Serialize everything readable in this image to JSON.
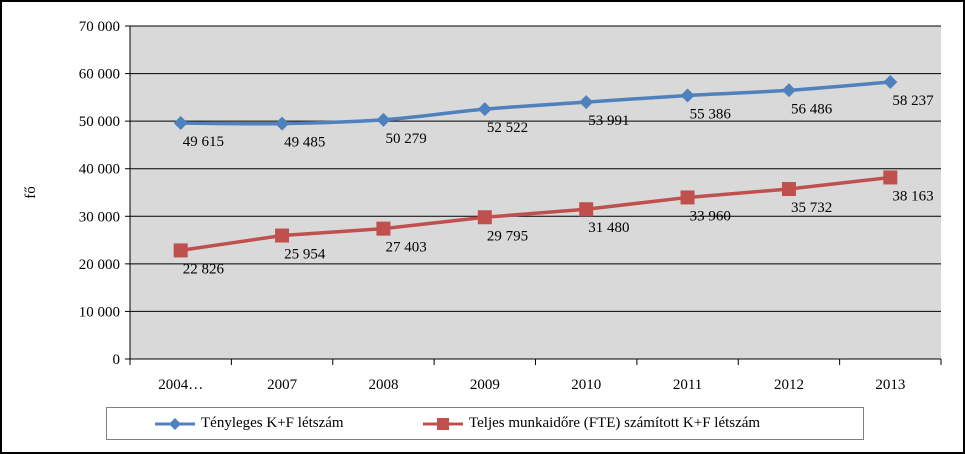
{
  "chart_data": {
    "type": "line",
    "title": "",
    "xlabel": "",
    "ylabel": "fő",
    "categories": [
      "2004…",
      "2007",
      "2008",
      "2009",
      "2010",
      "2011",
      "2012",
      "2013"
    ],
    "ylim": [
      0,
      70000
    ],
    "yticks": [
      0,
      10000,
      20000,
      30000,
      40000,
      50000,
      60000,
      70000
    ],
    "ytick_labels": [
      "0",
      "10 000",
      "20 000",
      "30 000",
      "40 000",
      "50 000",
      "60 000",
      "70 000"
    ],
    "grid": true,
    "legend_position": "bottom",
    "series": [
      {
        "name": "Tényleges K+F létszám",
        "color": "#4f81bd",
        "marker": "diamond",
        "values": [
          49615,
          49485,
          50279,
          52522,
          53991,
          55386,
          56486,
          58237
        ],
        "labels": [
          "49 615",
          "49 485",
          "50 279",
          "52 522",
          "53 991",
          "55 386",
          "56 486",
          "58 237"
        ]
      },
      {
        "name": "Teljes munkaidőre (FTE) számított K+F létszám",
        "color": "#c0504d",
        "marker": "square",
        "values": [
          22826,
          25954,
          27403,
          29795,
          31480,
          33960,
          35732,
          38163
        ],
        "labels": [
          "22 826",
          "25 954",
          "27 403",
          "29 795",
          "31 480",
          "33 960",
          "35 732",
          "38 163"
        ]
      }
    ]
  }
}
